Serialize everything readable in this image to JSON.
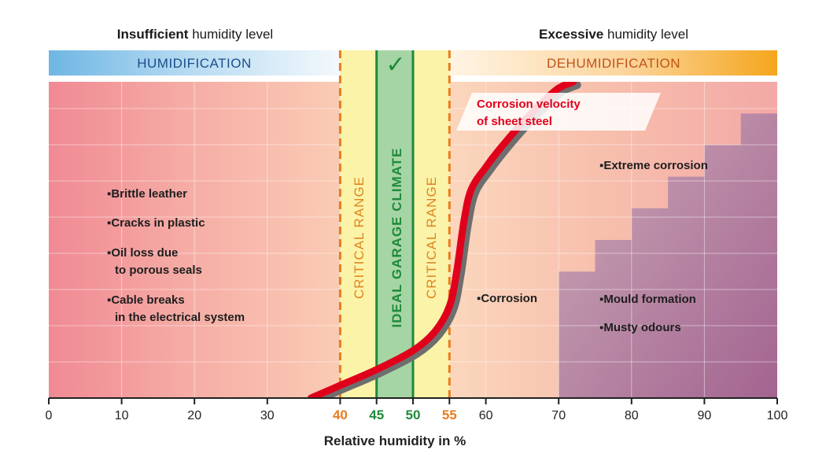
{
  "headers": {
    "left_bold": "Insufficient",
    "left_rest": " humidity level",
    "right_bold": "Excessive",
    "right_rest": " humidity level"
  },
  "bands": {
    "left_label": "HUMIDIFICATION",
    "right_label": "DEHUMIDIFICATION",
    "check_mark": "✓"
  },
  "zones": {
    "critical_left": "CRITICAL RANGE",
    "ideal": "IDEAL GARAGE CLIMATE",
    "critical_right": "CRITICAL RANGE"
  },
  "notes_left": [
    {
      "text": "Brittle leather",
      "lines": [
        "Brittle leather"
      ]
    },
    {
      "text": "Cracks in plastic",
      "lines": [
        "Cracks in plastic"
      ]
    },
    {
      "text": "Oil loss due to porous seals",
      "lines": [
        "Oil loss due",
        "to porous seals"
      ]
    },
    {
      "text": "Cable breaks in the electrical system",
      "lines": [
        "Cable breaks",
        "in the electrical system"
      ]
    }
  ],
  "notes_right": {
    "corrosion": "Corrosion",
    "extreme_corrosion": "Extreme corrosion",
    "mould": "Mould formation",
    "musty": "Musty odours"
  },
  "curve_label": [
    "Corrosion velocity",
    "of sheet steel"
  ],
  "colors": {
    "humidification": "#7fbde6",
    "dehumidification": "#f5a623",
    "critical_line": "#e87c1e",
    "ideal_line": "#1f8a3a",
    "curve": "#e0001b",
    "mould": "#9b5a8c"
  },
  "chart_data": {
    "type": "line",
    "xlabel": "Relative humidity in %",
    "ylabel": "",
    "xlim": [
      0,
      100
    ],
    "x_ticks": [
      0,
      10,
      20,
      30,
      40,
      45,
      50,
      55,
      60,
      70,
      80,
      90,
      100
    ],
    "highlight_ticks": [
      {
        "value": 40,
        "color": "#e87c1e"
      },
      {
        "value": 45,
        "color": "#1f8a3a"
      },
      {
        "value": 50,
        "color": "#1f8a3a"
      },
      {
        "value": 55,
        "color": "#e87c1e"
      }
    ],
    "ranges": {
      "critical": [
        [
          40,
          45
        ],
        [
          50,
          55
        ]
      ],
      "ideal": [
        45,
        50
      ]
    },
    "series": [
      {
        "name": "Corrosion velocity of sheet steel",
        "x": [
          36,
          40,
          45,
          50,
          53,
          55,
          56,
          57,
          58,
          60,
          62,
          65,
          68,
          70,
          72
        ],
        "y": [
          0,
          0.04,
          0.09,
          0.15,
          0.21,
          0.29,
          0.4,
          0.56,
          0.66,
          0.73,
          0.79,
          0.87,
          0.94,
          0.98,
          1.0
        ]
      }
    ],
    "mould_steps": [
      {
        "from_x": 70,
        "level": 0.4
      },
      {
        "from_x": 75,
        "level": 0.5
      },
      {
        "from_x": 80,
        "level": 0.6
      },
      {
        "from_x": 85,
        "level": 0.7
      },
      {
        "from_x": 90,
        "level": 0.8
      },
      {
        "from_x": 95,
        "level": 0.9
      }
    ]
  }
}
